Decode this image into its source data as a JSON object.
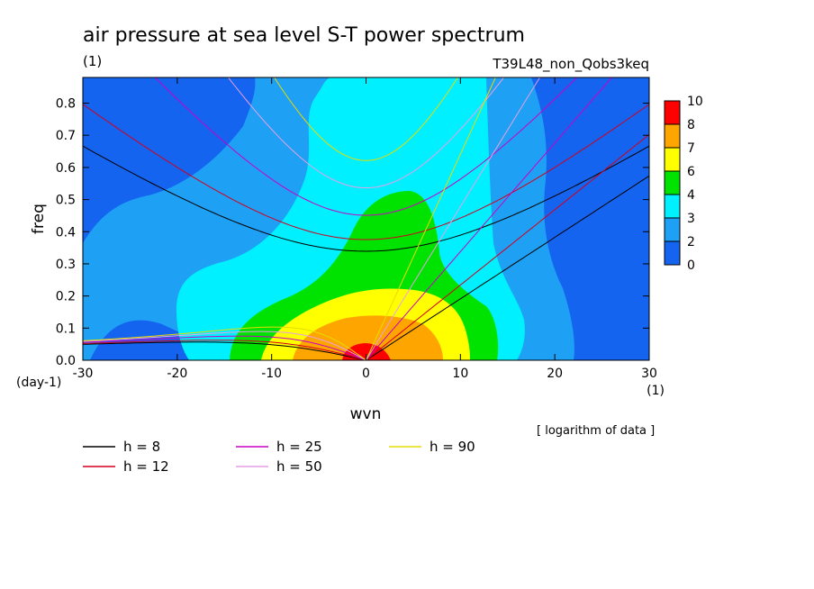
{
  "title": "air pressure at sea level S-T power spectrum",
  "units": "(1)",
  "experiment": "T39L48_non_Qobs3keq",
  "note": "[ logarithm of data ]",
  "chart_data": {
    "type": "heatmap",
    "xlabel": "wvn",
    "ylabel": "freq",
    "x_unit": "(1)",
    "y_unit": "(day-1)",
    "xlim": [
      -30,
      30
    ],
    "ylim": [
      0,
      0.88
    ],
    "x_ticks": [
      -30,
      -20,
      -10,
      0,
      10,
      20,
      30
    ],
    "x_tick_labels": [
      "-30",
      "-20",
      "-10",
      "0",
      "10",
      "20",
      "30"
    ],
    "y_ticks": [
      0.0,
      0.1,
      0.2,
      0.3,
      0.4,
      0.5,
      0.6,
      0.7,
      0.8
    ],
    "y_tick_labels": [
      "0.0",
      "0.1",
      "0.2",
      "0.3",
      "0.4",
      "0.5",
      "0.6",
      "0.7",
      "0.8"
    ],
    "colorbar": {
      "levels": [
        0,
        2,
        3,
        4,
        6,
        7,
        8,
        10
      ],
      "labels": [
        "0",
        "2",
        "3",
        "4",
        "6",
        "7",
        "8",
        "10"
      ],
      "colors": [
        "#1464f0",
        "#1ea0f5",
        "#00f0ff",
        "#00e300",
        "#ffff00",
        "#ffa500",
        "#ff0000"
      ]
    },
    "dispersion_curves": [
      {
        "label": "h =  8",
        "h": 8,
        "color": "#000000"
      },
      {
        "label": "h = 12",
        "h": 12,
        "color": "#d2001e"
      },
      {
        "label": "h = 25",
        "h": 25,
        "color": "#c800c8"
      },
      {
        "label": "h = 50",
        "h": 50,
        "color": "#e6a0e6"
      },
      {
        "label": "h = 90",
        "h": 90,
        "color": "#e6dc00"
      }
    ]
  }
}
